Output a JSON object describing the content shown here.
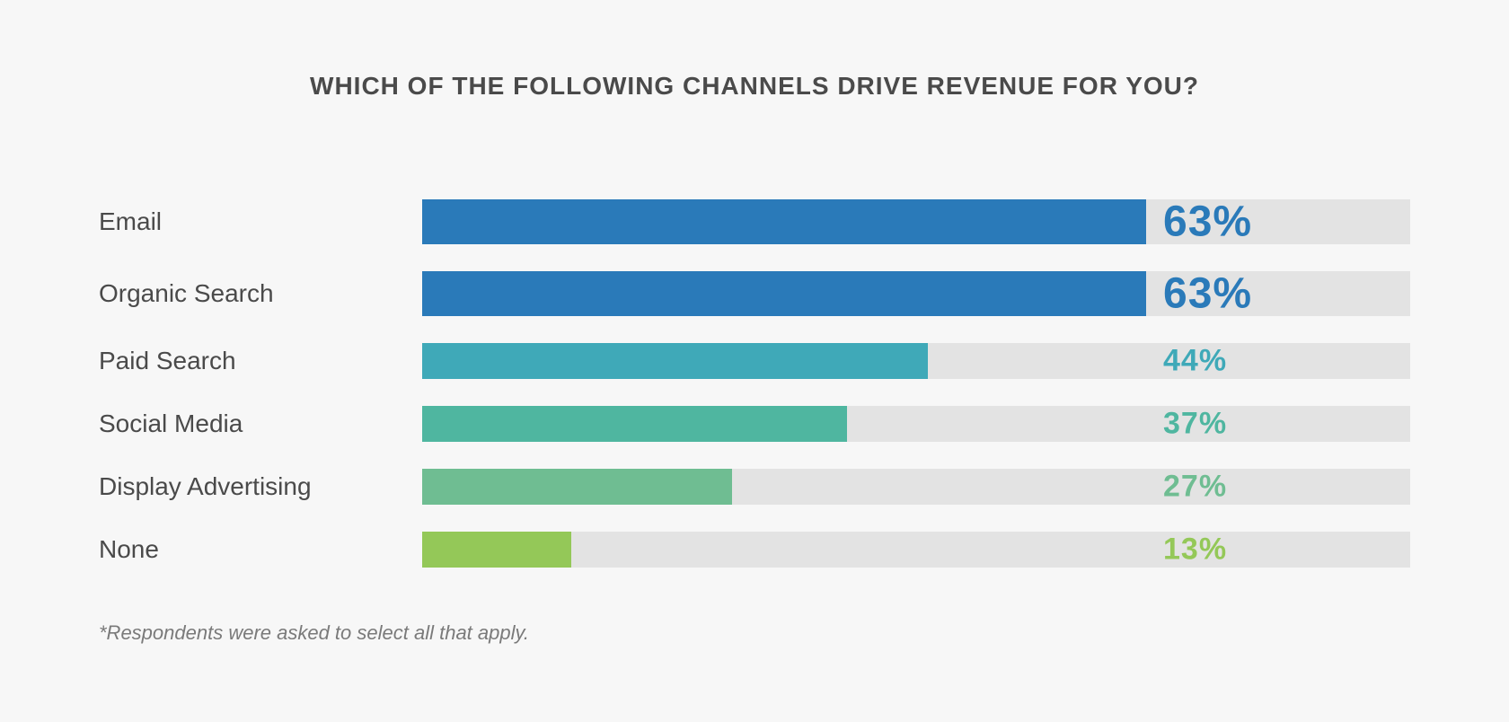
{
  "chart": {
    "type": "bar-horizontal",
    "title": "WHICH OF THE FOLLOWING CHANNELS DRIVE REVENUE FOR YOU?",
    "title_fontsize": 28,
    "title_color": "#4a4a4a",
    "background_color": "#f7f7f7",
    "track_color": "#e3e3e3",
    "label_fontsize": 28,
    "label_color": "#4a4a4a",
    "footnote": "*Respondents were asked to select all that apply.",
    "footnote_fontsize": 22,
    "footnote_color": "#7a7a7a",
    "bar_scale_max": 86,
    "bar_height_emphasis": 50,
    "bar_height_normal": 40,
    "value_fontsize_emphasis": 48,
    "value_fontsize_normal": 34,
    "value_label_left_pct": 75,
    "rows": [
      {
        "label": "Email",
        "value": 63,
        "display": "63%",
        "color": "#2a7ab9",
        "emphasis": true
      },
      {
        "label": "Organic Search",
        "value": 63,
        "display": "63%",
        "color": "#2a7ab9",
        "emphasis": true
      },
      {
        "label": "Paid Search",
        "value": 44,
        "display": "44%",
        "color": "#3fa9b8",
        "emphasis": false
      },
      {
        "label": "Social Media",
        "value": 37,
        "display": "37%",
        "color": "#4fb6a0",
        "emphasis": false
      },
      {
        "label": "Display Advertising",
        "value": 27,
        "display": "27%",
        "color": "#6fbd92",
        "emphasis": false
      },
      {
        "label": "None",
        "value": 13,
        "display": "13%",
        "color": "#94c858",
        "emphasis": false
      }
    ]
  }
}
